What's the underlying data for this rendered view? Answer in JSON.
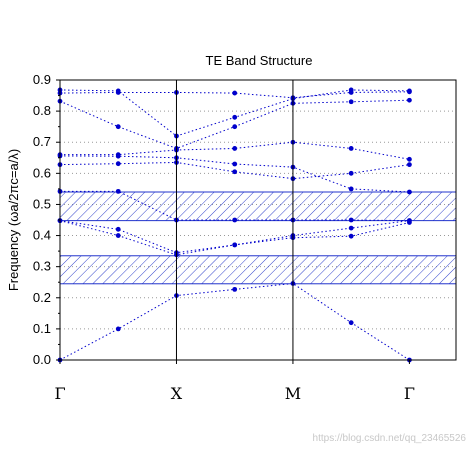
{
  "chart_data": {
    "type": "line",
    "title": "TE Band Structure",
    "ylabel": "Frequency (ωa/2πc=a/λ)",
    "xlabel": "",
    "x_ticks": [
      "Γ",
      "X",
      "M",
      "Γ"
    ],
    "x_tick_positions": [
      0,
      1,
      2,
      3
    ],
    "xlim": [
      0,
      3.4
    ],
    "ylim": [
      0,
      0.9
    ],
    "y_ticks": [
      "0.0",
      "0.1",
      "0.2",
      "0.3",
      "0.4",
      "0.5",
      "0.6",
      "0.7",
      "0.8",
      "0.9"
    ],
    "grid": "horizontal dotted",
    "colors": {
      "band": "#0000cc",
      "gap": "#2233cc"
    },
    "band_gaps": [
      {
        "from": 0.245,
        "to": 0.335
      },
      {
        "from": 0.448,
        "to": 0.54
      }
    ],
    "bands": [
      {
        "values": [
          0.0,
          0.1,
          0.207,
          0.227,
          0.246,
          0.12,
          0.0
        ]
      },
      {
        "values": [
          0.448,
          0.4,
          0.338,
          0.37,
          0.393,
          0.398,
          0.442
        ]
      },
      {
        "values": [
          0.448,
          0.42,
          0.345,
          0.37,
          0.4,
          0.424,
          0.448
        ]
      },
      {
        "values": [
          0.542,
          0.542,
          0.45,
          0.45,
          0.45,
          0.45,
          0.448
        ]
      },
      {
        "values": [
          0.628,
          0.631,
          0.635,
          0.605,
          0.583,
          0.6,
          0.628
        ]
      },
      {
        "values": [
          0.656,
          0.655,
          0.65,
          0.63,
          0.62,
          0.55,
          0.54
        ]
      },
      {
        "values": [
          0.66,
          0.66,
          0.675,
          0.68,
          0.7,
          0.68,
          0.645
        ]
      },
      {
        "values": [
          0.832,
          0.75,
          0.68,
          0.75,
          0.825,
          0.83,
          0.835
        ]
      },
      {
        "values": [
          0.858,
          0.86,
          0.86,
          0.858,
          0.843,
          0.86,
          0.862
        ]
      },
      {
        "values": [
          0.868,
          0.865,
          0.72,
          0.78,
          0.84,
          0.868,
          0.865
        ]
      }
    ]
  },
  "watermark": "https://blog.csdn.net/qq_23465526"
}
